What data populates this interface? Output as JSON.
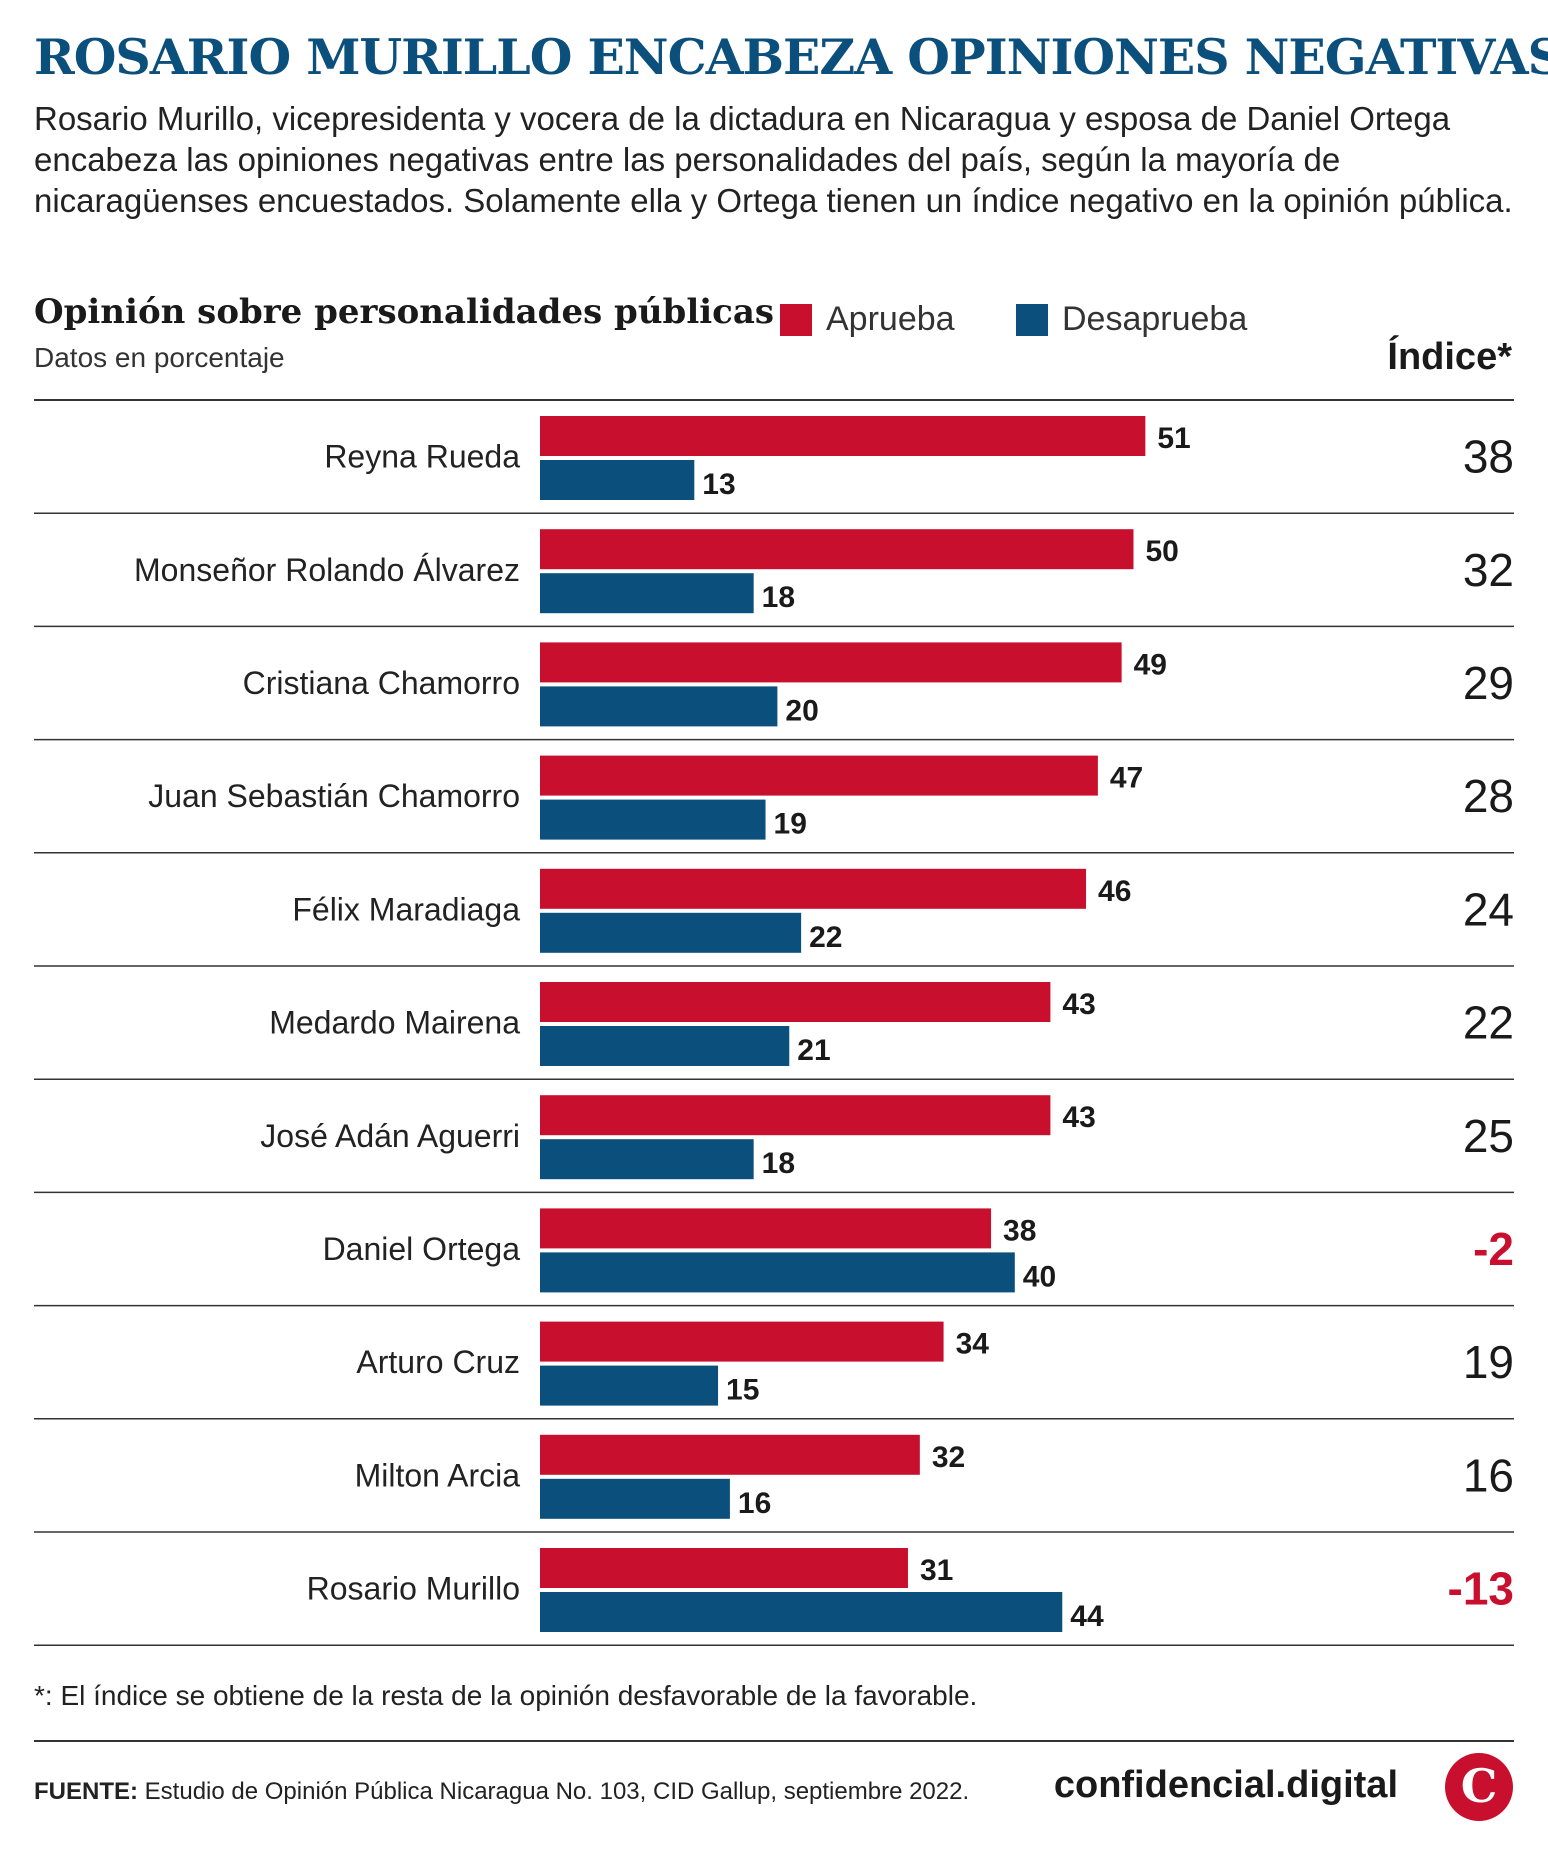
{
  "header": {
    "title": "ROSARIO MURILLO ENCABEZA OPINIONES NEGATIVAS",
    "intro": "Rosario Murillo, vicepresidenta y vocera de la dictadura en Nicaragua y esposa de Daniel Ortega encabeza las opiniones negativas entre las personalidades del país, según la mayoría de nicaragüenses encuestados. Solamente ella y Ortega tienen un índice negativo en la opinión pública."
  },
  "colors": {
    "approve": "#c8102e",
    "disapprove": "#0b4f7c",
    "title": "#0b4f7c",
    "negative_index": "#c8102e"
  },
  "chart_data": {
    "type": "bar",
    "orientation": "horizontal",
    "title": "Opinión sobre personalidades públicas",
    "subtitle": "Datos en porcentaje",
    "index_label": "Índice*",
    "categories": [
      "Reyna Rueda",
      "Monseñor Rolando Álvarez",
      "Cristiana Chamorro",
      "Juan Sebastián Chamorro",
      "Félix Maradiaga",
      "Medardo Mairena",
      "José Adán Aguerri",
      "Daniel Ortega",
      "Arturo Cruz",
      "Milton Arcia",
      "Rosario Murillo"
    ],
    "series": [
      {
        "name": "Aprueba",
        "values": [
          51,
          50,
          49,
          47,
          46,
          43,
          43,
          38,
          34,
          32,
          31
        ]
      },
      {
        "name": "Desaprueba",
        "values": [
          13,
          18,
          20,
          19,
          22,
          21,
          18,
          40,
          15,
          16,
          44
        ]
      }
    ],
    "index": [
      "38",
      "32",
      "29",
      "28",
      "24",
      "22",
      "25",
      "-2",
      "19",
      "16",
      "-13"
    ],
    "legend": "top",
    "grid": false
  },
  "footer": {
    "footnote": "*: El índice se obtiene de la resta de la opinión desfavorable de la favorable.",
    "source_label": "FUENTE:",
    "source_text": "Estudio de Opinión Pública Nicaragua No. 103, CID Gallup, septiembre 2022.",
    "brand": "confidencial.digital",
    "logo_letter": "C"
  }
}
